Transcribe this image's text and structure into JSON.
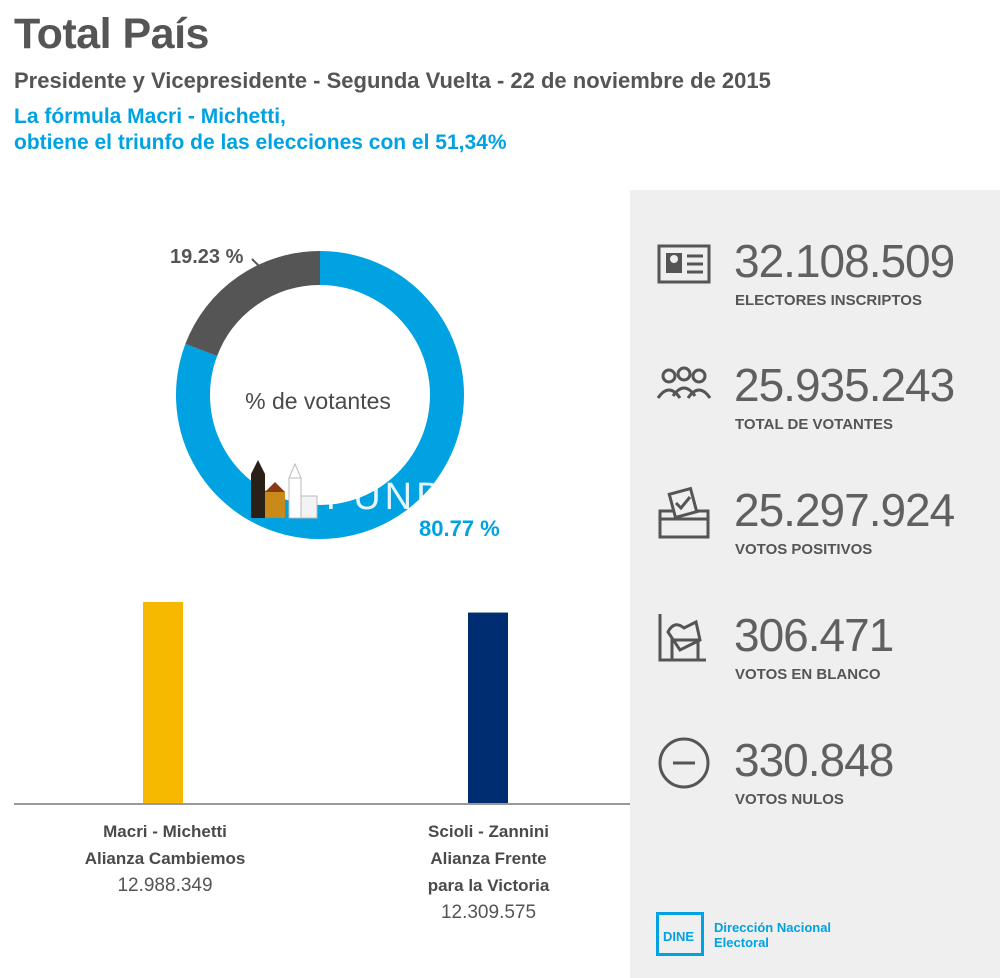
{
  "header": {
    "title": "Total País",
    "subtitle": "Presidente y Vicepresidente - Segunda Vuelta - 22 de noviembre de 2015",
    "headline_line1": "La fórmula Macri - Michetti,",
    "headline_line2": "obtiene el triunfo de las elecciones con el 51,34%"
  },
  "stats": [
    {
      "value": "32.108.509",
      "label": "ELECTORES INSCRIPTOS",
      "icon": "id-card-icon"
    },
    {
      "value": "25.935.243",
      "label": "TOTAL DE VOTANTES",
      "icon": "people-icon"
    },
    {
      "value": "25.297.924",
      "label": "VOTOS POSITIVOS",
      "icon": "ballot-box-icon"
    },
    {
      "value": "306.471",
      "label": "VOTOS EN BLANCO",
      "icon": "blank-ballot-icon"
    },
    {
      "value": "330.848",
      "label": "VOTOS NULOS",
      "icon": "minus-circle-icon"
    }
  ],
  "watermark_text": "FUNDACION TALLER",
  "logo": {
    "abbr": "DINE",
    "line1": "Dirección Nacional",
    "line2": "Electoral"
  },
  "colors": {
    "turnout_blue": "#00a2e2",
    "abstention_gray": "#555555",
    "macri_yellow": "#f7b900",
    "scioli_navy": "#002d72"
  },
  "chart_data": [
    {
      "type": "pie",
      "center_label": "% de votantes",
      "slices": [
        {
          "value": 80.77,
          "label": "80.77 %",
          "color": "#00a2e2"
        },
        {
          "value": 19.23,
          "label": "19.23 %",
          "color": "#555555"
        }
      ]
    },
    {
      "type": "bar",
      "categories": [
        {
          "line1": "Macri - Michetti",
          "line2": "Alianza Cambiemos",
          "line3": "",
          "votes": "12.988.349"
        },
        {
          "line1": "Scioli - Zannini",
          "line2": "Alianza Frente",
          "line3": "para la Victoria",
          "votes": "12.309.575"
        }
      ],
      "values": [
        12988349,
        12309575
      ],
      "colors": [
        "#f7b900",
        "#002d72"
      ]
    }
  ]
}
